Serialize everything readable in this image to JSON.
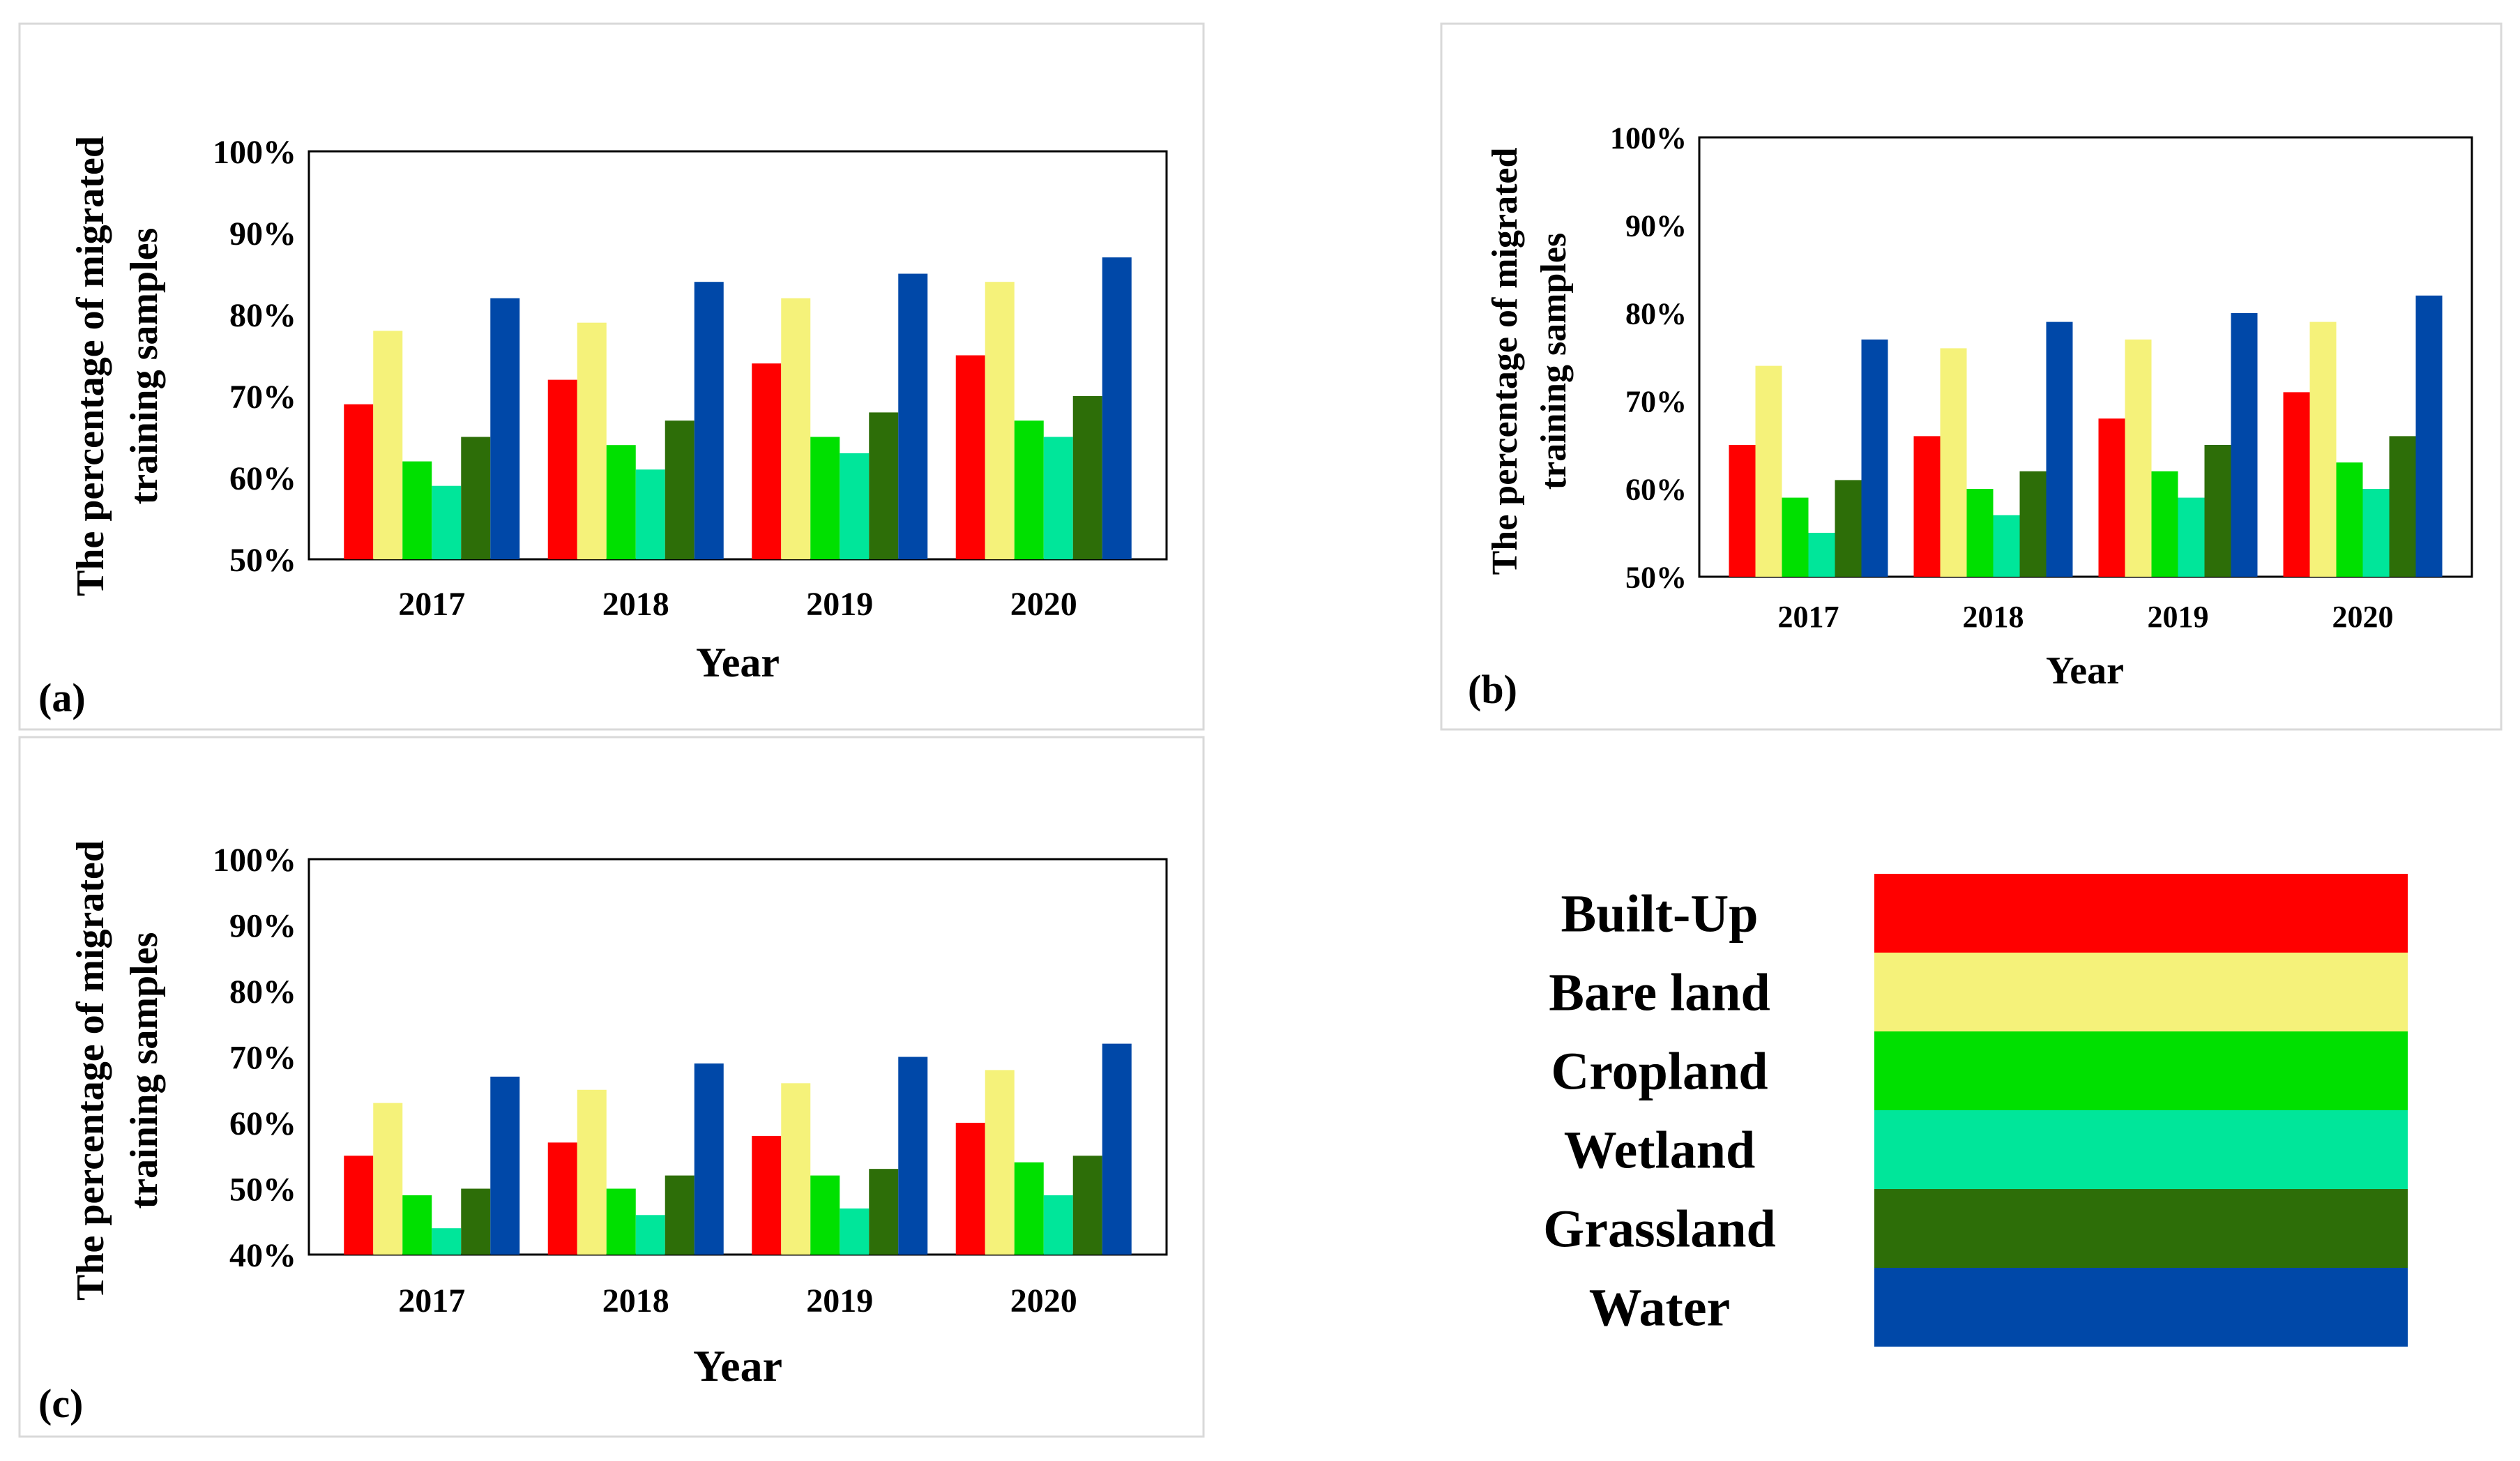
{
  "colors": {
    "Built-Up": "#ff0000",
    "Bare land": "#f5f27a",
    "Cropland": "#00e000",
    "Wetland": "#00e69a",
    "Grassland": "#2d6e08",
    "Water": "#0048a8"
  },
  "legend": {
    "items": [
      "Built-Up",
      "Bare land",
      "Cropland",
      "Wetland",
      "Grassland",
      "Water"
    ]
  },
  "chart_data": [
    {
      "type": "bar",
      "panel_label": "(a)",
      "xlabel": "Year",
      "ylabel_lines": [
        "The percentage of migrated",
        "training samples"
      ],
      "categories": [
        "2017",
        "2018",
        "2019",
        "2020"
      ],
      "yticks": [
        "50%",
        "60%",
        "70%",
        "80%",
        "90%",
        "100%"
      ],
      "ylim": [
        50,
        100
      ],
      "series": [
        {
          "name": "Built-Up",
          "values": [
            69,
            72,
            74,
            75
          ]
        },
        {
          "name": "Bare land",
          "values": [
            78,
            79,
            82,
            84
          ]
        },
        {
          "name": "Cropland",
          "values": [
            62,
            64,
            65,
            67
          ]
        },
        {
          "name": "Wetland",
          "values": [
            59,
            61,
            63,
            65
          ]
        },
        {
          "name": "Grassland",
          "values": [
            65,
            67,
            68,
            70
          ]
        },
        {
          "name": "Water",
          "values": [
            82,
            84,
            85,
            87
          ]
        }
      ]
    },
    {
      "type": "bar",
      "panel_label": "(b)",
      "xlabel": "Year",
      "ylabel_lines": [
        "The percentage of migrated",
        "training samples"
      ],
      "categories": [
        "2017",
        "2018",
        "2019",
        "2020"
      ],
      "yticks": [
        "50%",
        "60%",
        "70%",
        "80%",
        "90%",
        "100%"
      ],
      "ylim": [
        50,
        100
      ],
      "series": [
        {
          "name": "Built-Up",
          "values": [
            65,
            66,
            68,
            71
          ]
        },
        {
          "name": "Bare land",
          "values": [
            74,
            76,
            77,
            79
          ]
        },
        {
          "name": "Cropland",
          "values": [
            59,
            60,
            62,
            63
          ]
        },
        {
          "name": "Wetland",
          "values": [
            55,
            57,
            59,
            60
          ]
        },
        {
          "name": "Grassland",
          "values": [
            61,
            62,
            65,
            66
          ]
        },
        {
          "name": "Water",
          "values": [
            77,
            79,
            80,
            82
          ]
        }
      ]
    },
    {
      "type": "bar",
      "panel_label": "(c)",
      "xlabel": "Year",
      "ylabel_lines": [
        "The percentage of migrated",
        "training samples"
      ],
      "categories": [
        "2017",
        "2018",
        "2019",
        "2020"
      ],
      "yticks": [
        "40%",
        "50%",
        "60%",
        "70%",
        "80%",
        "90%",
        "100%"
      ],
      "ylim": [
        40,
        100
      ],
      "series": [
        {
          "name": "Built-Up",
          "values": [
            55,
            57,
            58,
            60
          ]
        },
        {
          "name": "Bare land",
          "values": [
            63,
            65,
            66,
            68
          ]
        },
        {
          "name": "Cropland",
          "values": [
            49,
            50,
            52,
            54
          ]
        },
        {
          "name": "Wetland",
          "values": [
            44,
            46,
            47,
            49
          ]
        },
        {
          "name": "Grassland",
          "values": [
            50,
            52,
            53,
            55
          ]
        },
        {
          "name": "Water",
          "values": [
            67,
            69,
            70,
            72
          ]
        }
      ]
    }
  ]
}
